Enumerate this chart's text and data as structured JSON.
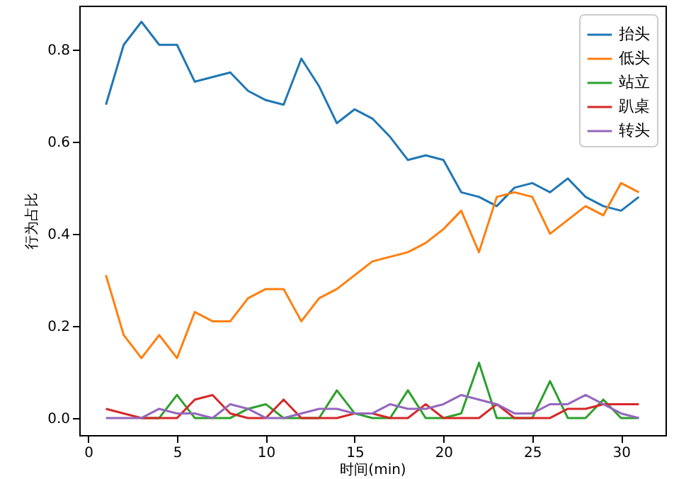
{
  "chart_data": {
    "type": "line",
    "xlabel": "时间(min)",
    "ylabel": "行为占比",
    "x": [
      1,
      2,
      3,
      4,
      5,
      6,
      7,
      8,
      9,
      10,
      11,
      12,
      13,
      14,
      15,
      16,
      17,
      18,
      19,
      20,
      21,
      22,
      23,
      24,
      25,
      26,
      27,
      28,
      29,
      30,
      31
    ],
    "xlim": [
      -0.5,
      32.5
    ],
    "xticks": [
      0,
      5,
      10,
      15,
      20,
      25,
      30
    ],
    "ylim": [
      -0.037,
      0.895
    ],
    "yticks": [
      {
        "value": 0,
        "label": "0.0"
      },
      {
        "value": 0.2,
        "label": "0.2"
      },
      {
        "value": 0.4,
        "label": "0.4"
      },
      {
        "value": 0.6,
        "label": "0.6"
      },
      {
        "value": 0.8,
        "label": "0.8"
      }
    ],
    "legend": "top right",
    "grid": false,
    "marker": "none",
    "line_style": "solid",
    "series": [
      {
        "name": "抬头",
        "color": "#1f77b4",
        "values": [
          0.68,
          0.81,
          0.86,
          0.81,
          0.81,
          0.73,
          0.74,
          0.75,
          0.71,
          0.69,
          0.68,
          0.78,
          0.72,
          0.64,
          0.67,
          0.65,
          0.61,
          0.56,
          0.57,
          0.56,
          0.49,
          0.48,
          0.46,
          0.5,
          0.51,
          0.49,
          0.52,
          0.48,
          0.46,
          0.45,
          0.48
        ]
      },
      {
        "name": "低头",
        "color": "#ff7f0e",
        "values": [
          0.31,
          0.18,
          0.13,
          0.18,
          0.13,
          0.23,
          0.21,
          0.21,
          0.26,
          0.28,
          0.28,
          0.21,
          0.26,
          0.28,
          0.31,
          0.34,
          0.35,
          0.36,
          0.38,
          0.41,
          0.45,
          0.36,
          0.48,
          0.49,
          0.48,
          0.4,
          0.43,
          0.46,
          0.44,
          0.51,
          0.49
        ]
      },
      {
        "name": "站立",
        "color": "#2ca02c",
        "values": [
          null,
          null,
          0,
          0,
          0.05,
          0,
          0,
          0,
          0.02,
          0.03,
          0,
          0,
          0,
          0.06,
          0.01,
          0,
          0,
          0.06,
          0,
          0,
          0.01,
          0.12,
          0,
          0,
          0,
          0.08,
          0,
          0,
          0.04,
          0,
          0
        ]
      },
      {
        "name": "趴桌",
        "color": "#d62728",
        "values": [
          0.02,
          0.01,
          0,
          0,
          0,
          0.04,
          0.05,
          0.01,
          0,
          0,
          0.04,
          0,
          0,
          0,
          0.01,
          0.01,
          0,
          0,
          0.03,
          0,
          0,
          0,
          0.03,
          0,
          0,
          0,
          0.02,
          0.02,
          0.03,
          0.03,
          0.03
        ]
      },
      {
        "name": "转头",
        "color": "#9467bd",
        "values": [
          0,
          0,
          0,
          0.02,
          0.01,
          0.01,
          0,
          0.03,
          0.02,
          0,
          0,
          0.01,
          0.02,
          0.02,
          0.01,
          0.01,
          0.03,
          0.02,
          0.02,
          0.03,
          0.05,
          0.04,
          0.03,
          0.01,
          0.01,
          0.03,
          0.03,
          0.05,
          0.03,
          0.01,
          0
        ]
      }
    ]
  }
}
